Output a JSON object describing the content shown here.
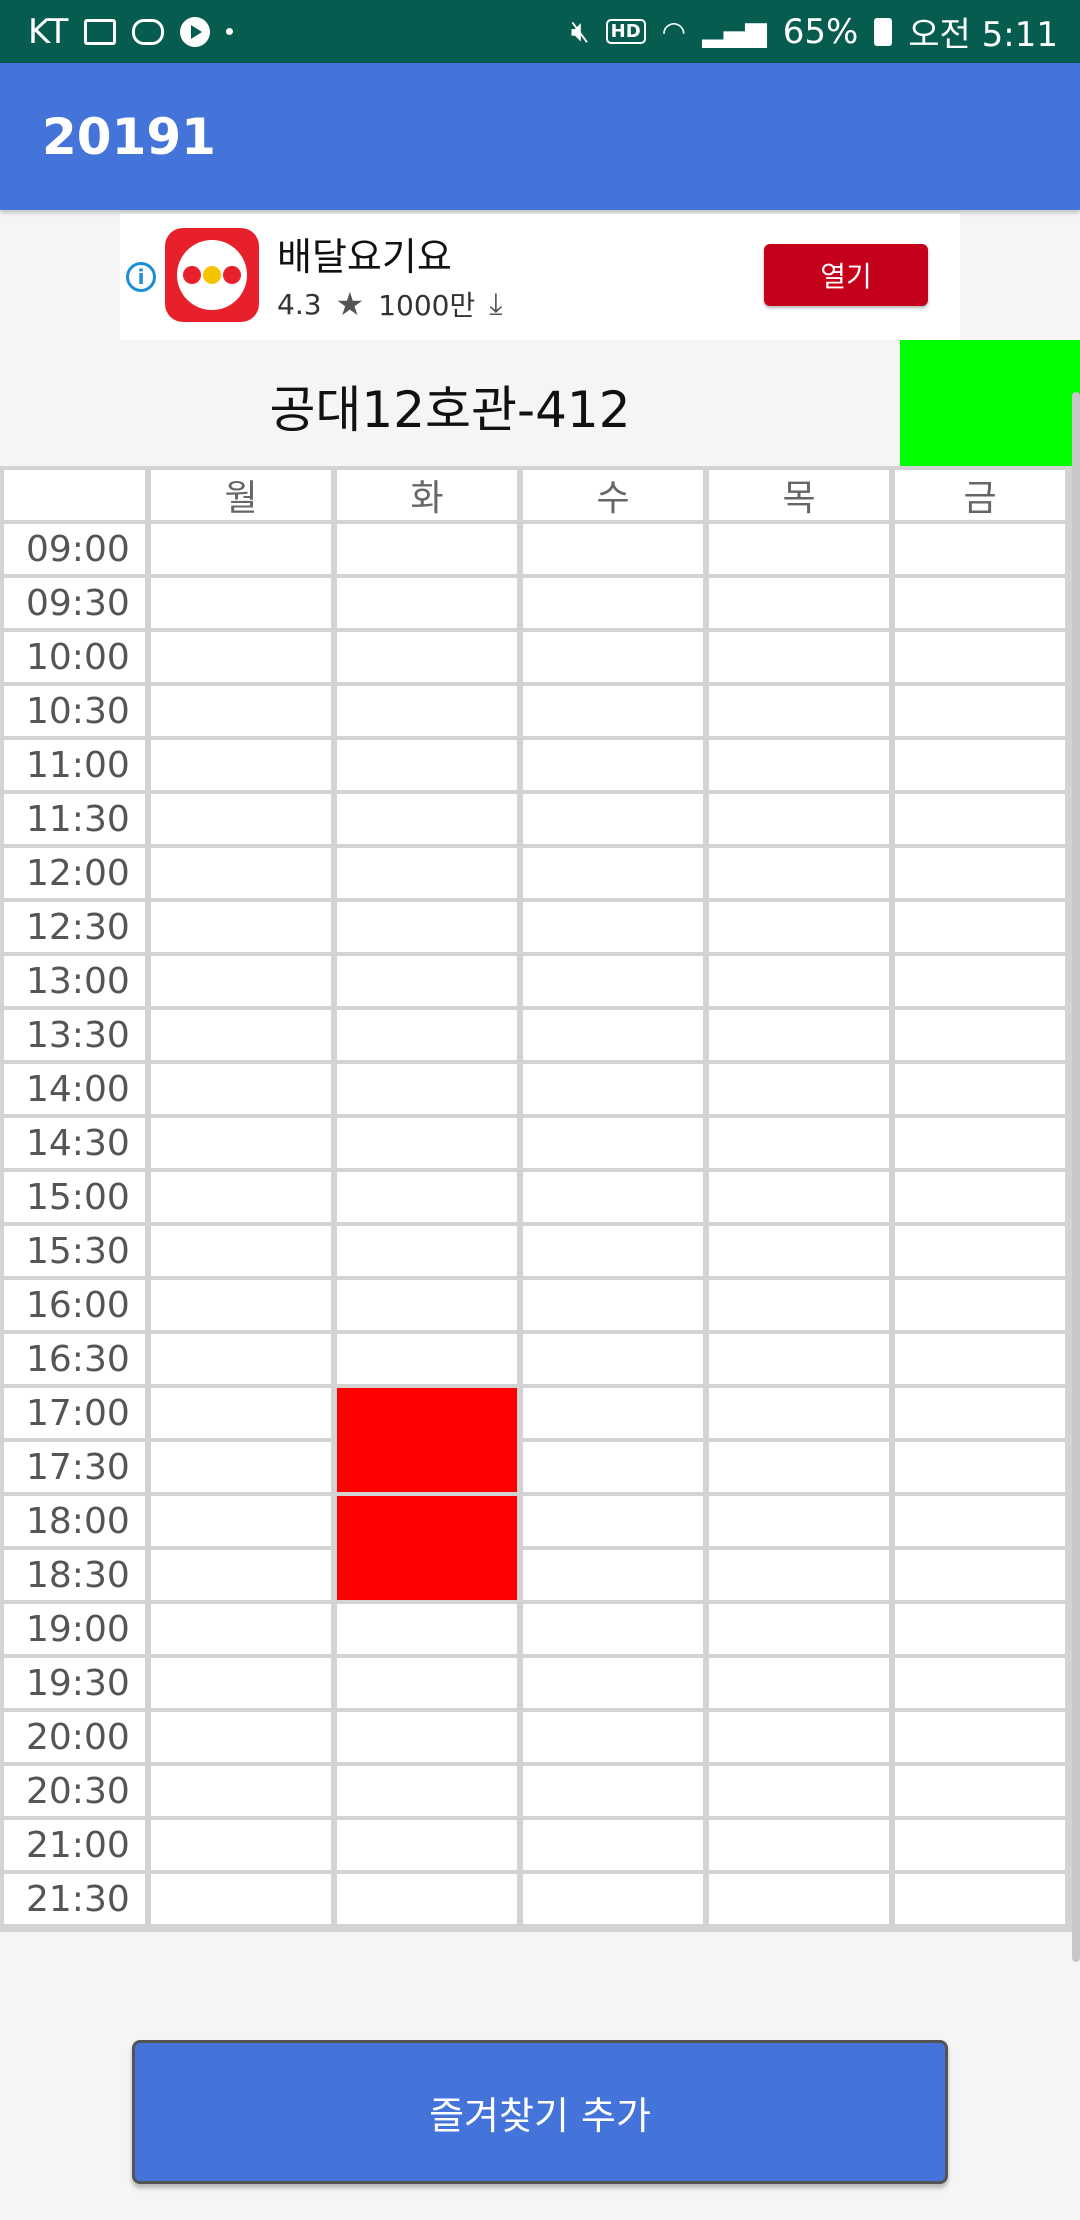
{
  "status_bar": {
    "carrier": "KT",
    "battery": "65%",
    "time": "오전 5:11",
    "hd_label": "HD",
    "icons": [
      "image-icon",
      "cloud-sync-icon",
      "play-icon",
      "dot-icon",
      "mute-icon",
      "hd-icon",
      "wifi-icon",
      "signal-icon",
      "battery-icon"
    ]
  },
  "app_bar": {
    "title": "20191"
  },
  "ad": {
    "app_name": "배달요기요",
    "rating": "4.3",
    "downloads": "1000만",
    "open_button": "열기",
    "info_icon": "i",
    "colors": {
      "button": "#c4001a",
      "logo": "#e8202b"
    }
  },
  "room": {
    "title": "공대12호관-412",
    "indicator_color": "#00ff00"
  },
  "timetable": {
    "days": [
      "월",
      "화",
      "수",
      "목",
      "금"
    ],
    "times": [
      "09:00",
      "09:30",
      "10:00",
      "10:30",
      "11:00",
      "11:30",
      "12:00",
      "12:30",
      "13:00",
      "13:30",
      "14:00",
      "14:30",
      "15:00",
      "15:30",
      "16:00",
      "16:30",
      "17:00",
      "17:30",
      "18:00",
      "18:30",
      "19:00",
      "19:30",
      "20:00",
      "20:30",
      "21:00",
      "21:30"
    ],
    "occupied": [
      {
        "day": "화",
        "time": "17:00"
      },
      {
        "day": "화",
        "time": "17:30"
      },
      {
        "day": "화",
        "time": "18:00"
      },
      {
        "day": "화",
        "time": "18:30"
      }
    ],
    "occupied_color": "#ff0000"
  },
  "actions": {
    "favorite_button": "즐겨찾기 추가"
  },
  "colors": {
    "status_bar": "#065c4f",
    "app_bar": "#4474da",
    "button": "#4474da"
  }
}
